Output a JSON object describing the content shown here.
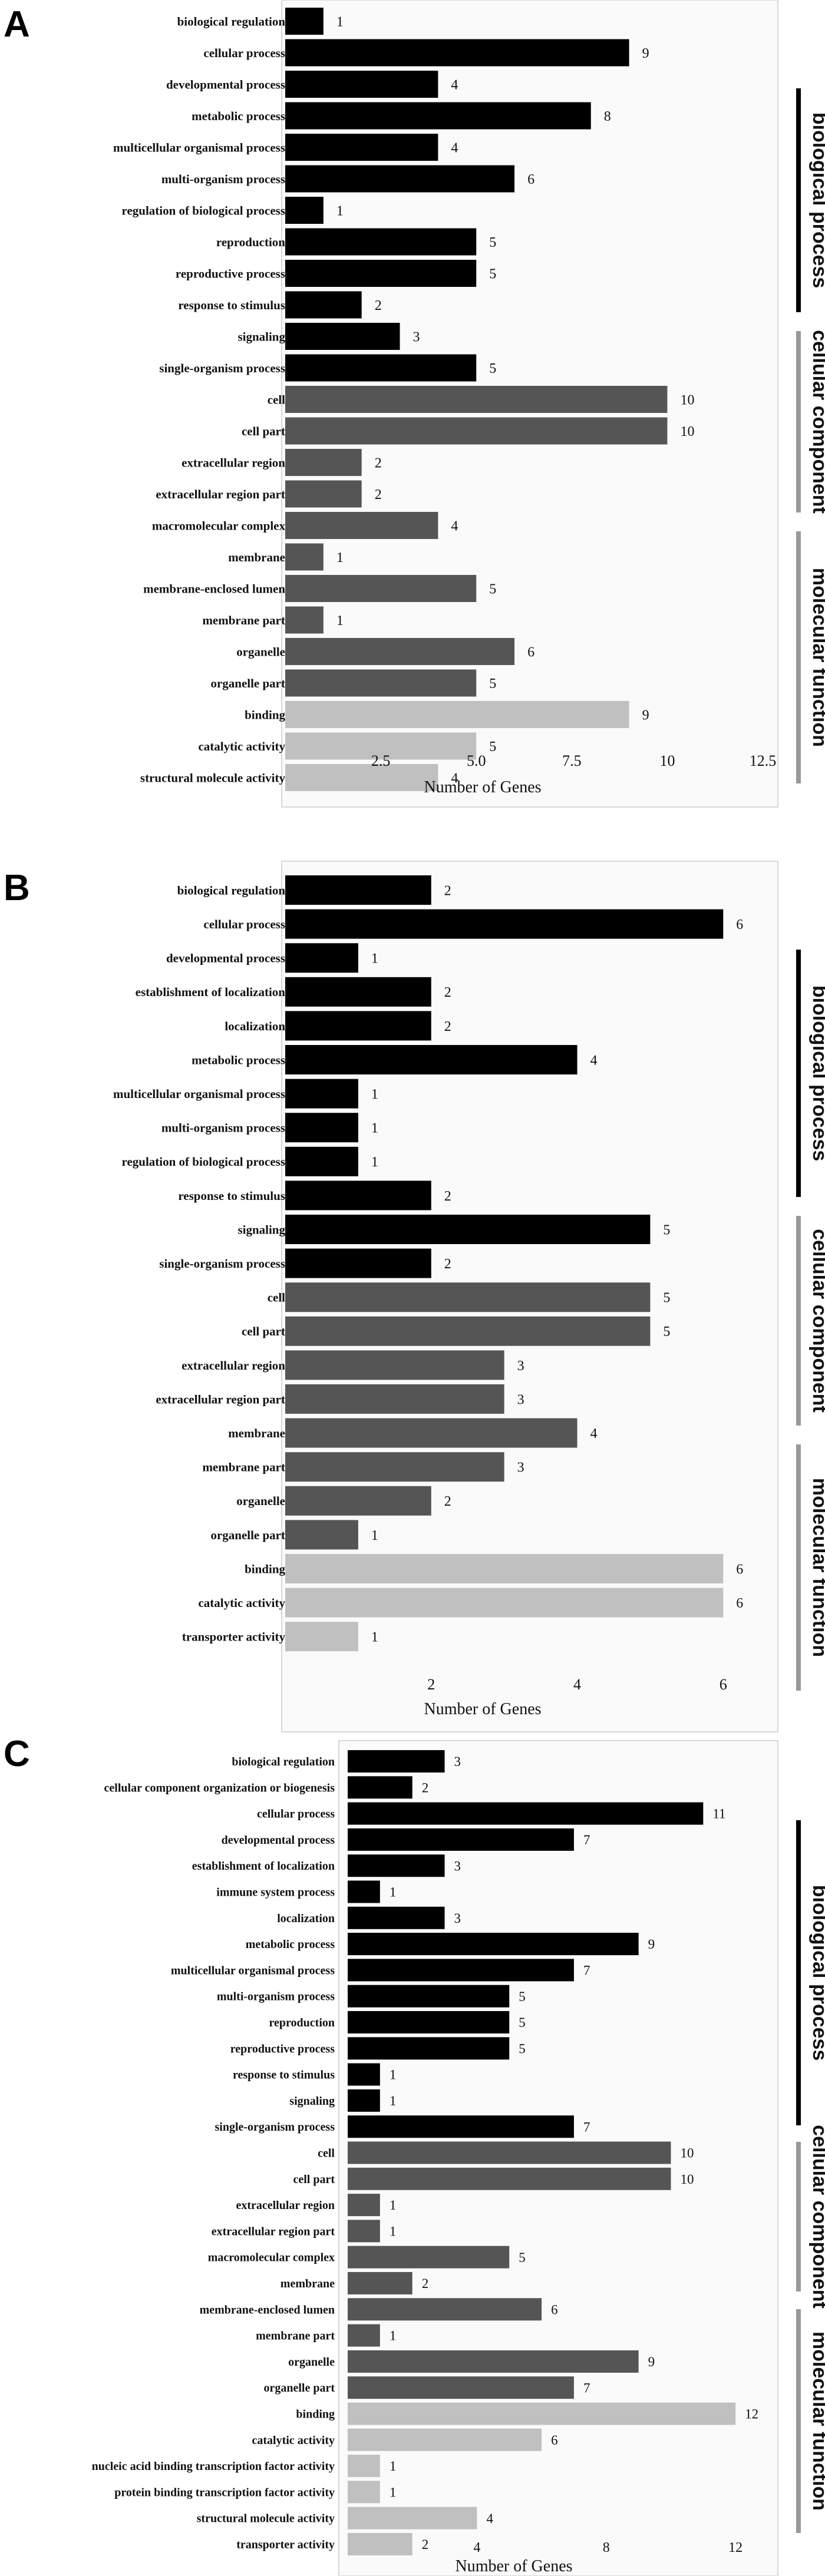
{
  "colors": {
    "biological_process": "#000000",
    "cellular_component": "#555555",
    "molecular_function": "#c0c0c0",
    "bracket_bp": "#000000",
    "bracket_cc": "#999999",
    "bracket_mf": "#999999"
  },
  "chart_data": [
    {
      "type": "bar",
      "orientation": "horizontal",
      "panel": "A",
      "xlabel": "Number of Genes",
      "xlim": [
        0,
        12.5
      ],
      "xticks": [
        "2.5",
        "5.0",
        "7.5",
        "10",
        "12.5"
      ],
      "xtick_values": [
        2.5,
        5.0,
        7.5,
        10,
        12.5
      ],
      "groups": [
        "biological process",
        "cellular component",
        "molecular function"
      ],
      "categories": [
        "biological regulation",
        "cellular process",
        "developmental process",
        "metabolic process",
        "multicellular organismal process",
        "multi-organism process",
        "regulation of biological process",
        "reproduction",
        "reproductive process",
        "response to stimulus",
        "signaling",
        "single-organism process",
        "cell",
        "cell part",
        "extracellular region",
        "extracellular region part",
        "macromolecular complex",
        "membrane",
        "membrane-enclosed lumen",
        "membrane part",
        "organelle",
        "organelle part",
        "binding",
        "catalytic activity",
        "structural molecule activity"
      ],
      "values": [
        1,
        9,
        4,
        8,
        4,
        6,
        1,
        5,
        5,
        2,
        3,
        5,
        10,
        10,
        2,
        2,
        4,
        1,
        5,
        1,
        6,
        5,
        9,
        5,
        4
      ],
      "category_group": [
        "bp",
        "bp",
        "bp",
        "bp",
        "bp",
        "bp",
        "bp",
        "bp",
        "bp",
        "bp",
        "bp",
        "bp",
        "cc",
        "cc",
        "cc",
        "cc",
        "cc",
        "cc",
        "cc",
        "cc",
        "cc",
        "cc",
        "mf",
        "mf",
        "mf"
      ]
    },
    {
      "type": "bar",
      "orientation": "horizontal",
      "panel": "B",
      "xlabel": "Number of Genes",
      "xlim": [
        0,
        6.5
      ],
      "xticks": [
        "2",
        "4",
        "6"
      ],
      "xtick_values": [
        2,
        4,
        6
      ],
      "groups": [
        "biological process",
        "cellular component",
        "molecular function"
      ],
      "categories": [
        "biological regulation",
        "cellular process",
        "developmental process",
        "establishment of localization",
        "localization",
        "metabolic process",
        "multicellular organismal process",
        "multi-organism process",
        "regulation of biological process",
        "response to stimulus",
        "signaling",
        "single-organism process",
        "cell",
        "cell part",
        "extracellular region",
        "extracellular region part",
        "membrane",
        "membrane part",
        "organelle",
        "organelle part",
        "binding",
        "catalytic activity",
        "transporter activity"
      ],
      "values": [
        2,
        6,
        1,
        2,
        2,
        4,
        1,
        1,
        1,
        2,
        5,
        2,
        5,
        5,
        3,
        3,
        4,
        3,
        2,
        1,
        6,
        6,
        1
      ],
      "category_group": [
        "bp",
        "bp",
        "bp",
        "bp",
        "bp",
        "bp",
        "bp",
        "bp",
        "bp",
        "bp",
        "bp",
        "bp",
        "cc",
        "cc",
        "cc",
        "cc",
        "cc",
        "cc",
        "cc",
        "cc",
        "mf",
        "mf",
        "mf"
      ]
    },
    {
      "type": "bar",
      "orientation": "horizontal",
      "panel": "C",
      "xlabel": "Number of Genes",
      "xlim": [
        0,
        13.5
      ],
      "xticks": [
        "4",
        "8",
        "12"
      ],
      "xtick_values": [
        4,
        8,
        12
      ],
      "groups": [
        "biological process",
        "cellular component",
        "molecular function"
      ],
      "categories": [
        "biological regulation",
        "cellular component organization or biogenesis",
        "cellular process",
        "developmental process",
        "establishment of localization",
        "immune system process",
        "localization",
        "metabolic process",
        "multicellular organismal process",
        "multi-organism process",
        "reproduction",
        "reproductive process",
        "response to stimulus",
        "signaling",
        "single-organism process",
        "cell",
        "cell part",
        "extracellular region",
        "extracellular region part",
        "macromolecular complex",
        "membrane",
        "membrane-enclosed lumen",
        "membrane part",
        "organelle",
        "organelle part",
        "binding",
        "catalytic activity",
        "nucleic acid binding transcription factor activity",
        "protein binding transcription factor activity",
        "structural molecule activity",
        "transporter activity"
      ],
      "values": [
        3,
        2,
        11,
        7,
        3,
        1,
        3,
        9,
        7,
        5,
        5,
        5,
        1,
        1,
        7,
        10,
        10,
        1,
        1,
        5,
        2,
        6,
        1,
        9,
        7,
        12,
        6,
        1,
        1,
        4,
        2
      ],
      "category_group": [
        "bp",
        "bp",
        "bp",
        "bp",
        "bp",
        "bp",
        "bp",
        "bp",
        "bp",
        "bp",
        "bp",
        "bp",
        "bp",
        "bp",
        "bp",
        "cc",
        "cc",
        "cc",
        "cc",
        "cc",
        "cc",
        "cc",
        "cc",
        "cc",
        "cc",
        "mf",
        "mf",
        "mf",
        "mf",
        "mf",
        "mf"
      ]
    }
  ]
}
